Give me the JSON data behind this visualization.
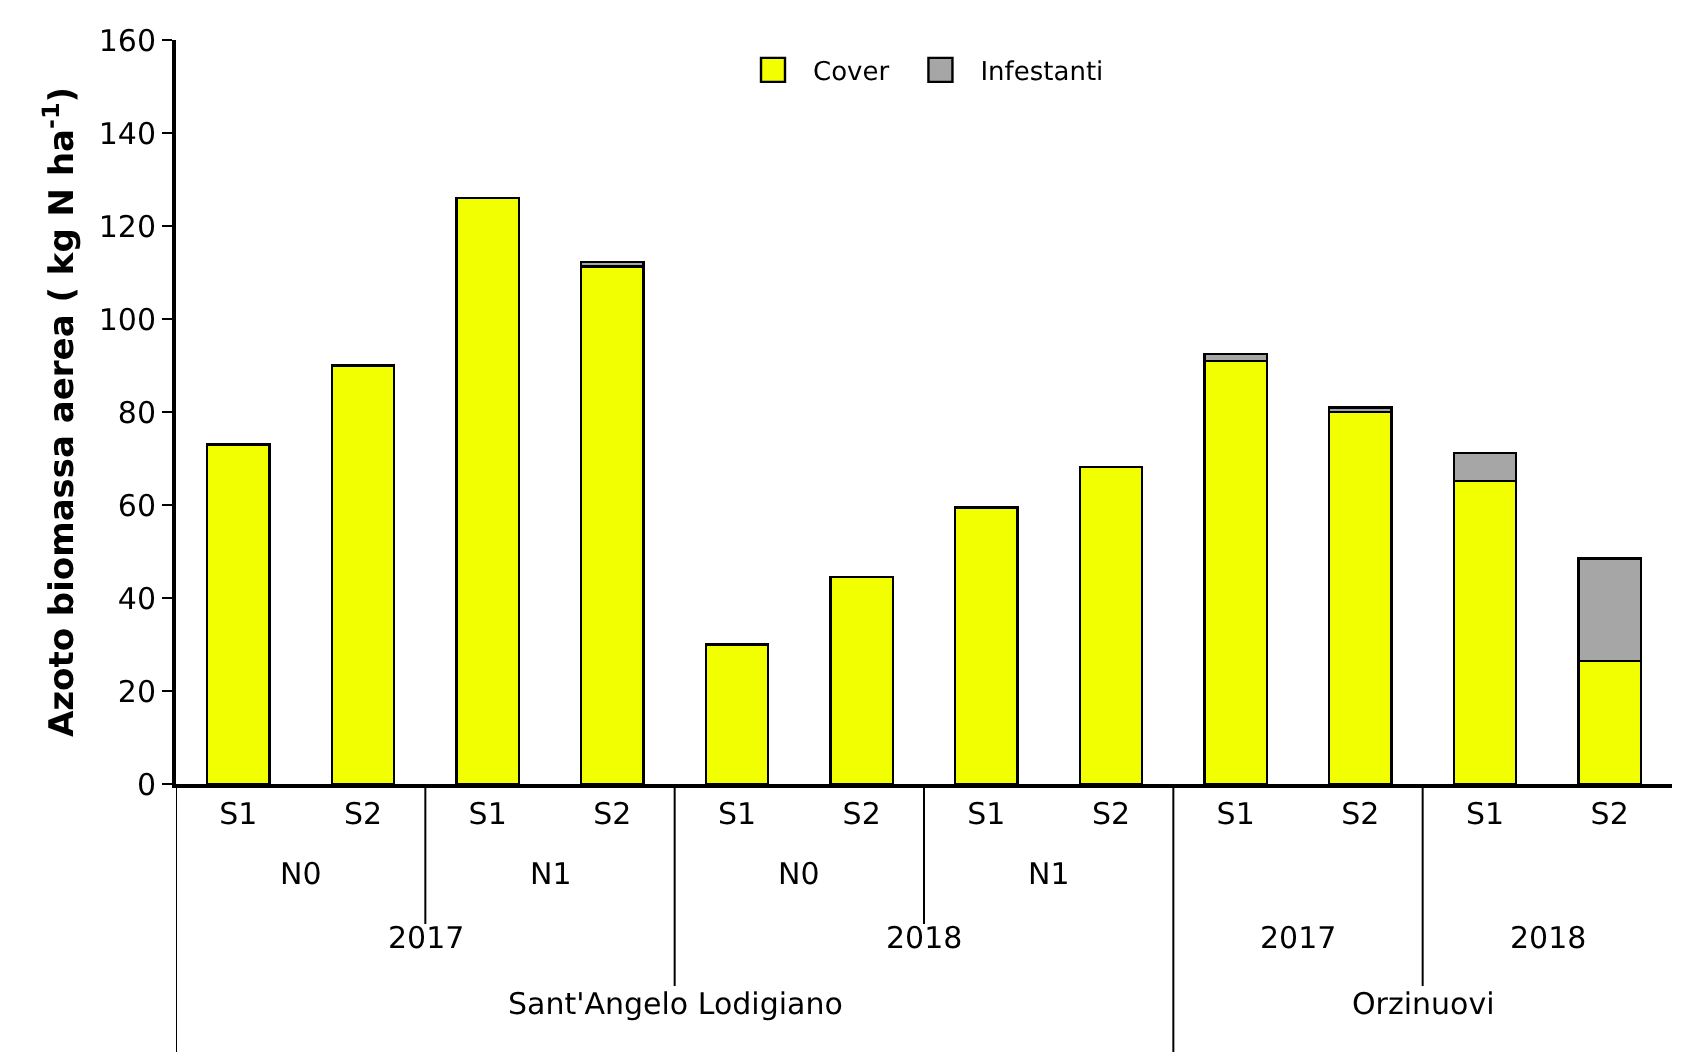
{
  "chart_data": {
    "type": "bar",
    "stacked": true,
    "ylabel": "Azoto biomassa aerea ( kg N ha$^{-1}$)",
    "categories": [
      "S1",
      "S2",
      "S1",
      "S2",
      "S1",
      "S2",
      "S1",
      "S2",
      "S1",
      "S2",
      "S1",
      "S2"
    ],
    "series": [
      {
        "name": "Cover",
        "color": "#f2ff00",
        "values": [
          73,
          90,
          126,
          111.3,
          30,
          44.5,
          59.5,
          68.2,
          91,
          80,
          65.2,
          26.5
        ]
      },
      {
        "name": "Infestanti",
        "color": "#a6a6a6",
        "values": [
          null,
          null,
          null,
          1,
          null,
          null,
          null,
          null,
          1.5,
          1,
          6,
          22
        ]
      }
    ],
    "ylim": [
      0,
      160
    ],
    "yticks": [
      0,
      20,
      40,
      60,
      80,
      100,
      120,
      140,
      160
    ],
    "annotations": [
      "N0",
      "N1",
      "N0",
      "N1",
      "2017",
      "2018",
      "2017",
      "2018",
      "Sant'Angelo Lodigiano",
      "Orzinuovi"
    ],
    "legend": "top",
    "grid": false
  }
}
